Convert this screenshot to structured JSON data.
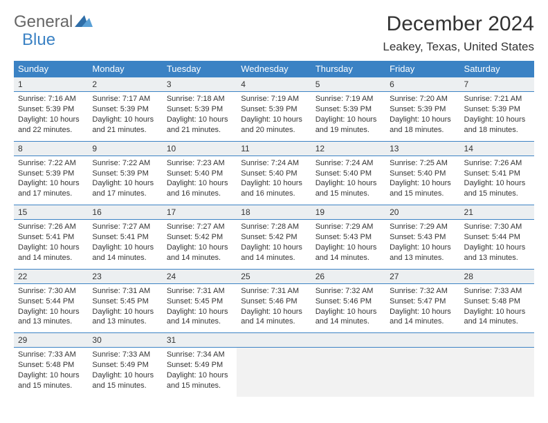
{
  "logo": {
    "text1": "General",
    "text2": "Blue"
  },
  "title": "December 2024",
  "location": "Leakey, Texas, United States",
  "colors": {
    "header_bg": "#3b82c4",
    "header_text": "#ffffff",
    "daynum_bg": "#eceff1",
    "border": "#3b82c4",
    "empty_bg": "#f2f2f2",
    "text": "#333333"
  },
  "day_names": [
    "Sunday",
    "Monday",
    "Tuesday",
    "Wednesday",
    "Thursday",
    "Friday",
    "Saturday"
  ],
  "weeks": [
    [
      {
        "n": "1",
        "sr": "Sunrise: 7:16 AM",
        "ss": "Sunset: 5:39 PM",
        "dl": "Daylight: 10 hours and 22 minutes."
      },
      {
        "n": "2",
        "sr": "Sunrise: 7:17 AM",
        "ss": "Sunset: 5:39 PM",
        "dl": "Daylight: 10 hours and 21 minutes."
      },
      {
        "n": "3",
        "sr": "Sunrise: 7:18 AM",
        "ss": "Sunset: 5:39 PM",
        "dl": "Daylight: 10 hours and 21 minutes."
      },
      {
        "n": "4",
        "sr": "Sunrise: 7:19 AM",
        "ss": "Sunset: 5:39 PM",
        "dl": "Daylight: 10 hours and 20 minutes."
      },
      {
        "n": "5",
        "sr": "Sunrise: 7:19 AM",
        "ss": "Sunset: 5:39 PM",
        "dl": "Daylight: 10 hours and 19 minutes."
      },
      {
        "n": "6",
        "sr": "Sunrise: 7:20 AM",
        "ss": "Sunset: 5:39 PM",
        "dl": "Daylight: 10 hours and 18 minutes."
      },
      {
        "n": "7",
        "sr": "Sunrise: 7:21 AM",
        "ss": "Sunset: 5:39 PM",
        "dl": "Daylight: 10 hours and 18 minutes."
      }
    ],
    [
      {
        "n": "8",
        "sr": "Sunrise: 7:22 AM",
        "ss": "Sunset: 5:39 PM",
        "dl": "Daylight: 10 hours and 17 minutes."
      },
      {
        "n": "9",
        "sr": "Sunrise: 7:22 AM",
        "ss": "Sunset: 5:39 PM",
        "dl": "Daylight: 10 hours and 17 minutes."
      },
      {
        "n": "10",
        "sr": "Sunrise: 7:23 AM",
        "ss": "Sunset: 5:40 PM",
        "dl": "Daylight: 10 hours and 16 minutes."
      },
      {
        "n": "11",
        "sr": "Sunrise: 7:24 AM",
        "ss": "Sunset: 5:40 PM",
        "dl": "Daylight: 10 hours and 16 minutes."
      },
      {
        "n": "12",
        "sr": "Sunrise: 7:24 AM",
        "ss": "Sunset: 5:40 PM",
        "dl": "Daylight: 10 hours and 15 minutes."
      },
      {
        "n": "13",
        "sr": "Sunrise: 7:25 AM",
        "ss": "Sunset: 5:40 PM",
        "dl": "Daylight: 10 hours and 15 minutes."
      },
      {
        "n": "14",
        "sr": "Sunrise: 7:26 AM",
        "ss": "Sunset: 5:41 PM",
        "dl": "Daylight: 10 hours and 15 minutes."
      }
    ],
    [
      {
        "n": "15",
        "sr": "Sunrise: 7:26 AM",
        "ss": "Sunset: 5:41 PM",
        "dl": "Daylight: 10 hours and 14 minutes."
      },
      {
        "n": "16",
        "sr": "Sunrise: 7:27 AM",
        "ss": "Sunset: 5:41 PM",
        "dl": "Daylight: 10 hours and 14 minutes."
      },
      {
        "n": "17",
        "sr": "Sunrise: 7:27 AM",
        "ss": "Sunset: 5:42 PM",
        "dl": "Daylight: 10 hours and 14 minutes."
      },
      {
        "n": "18",
        "sr": "Sunrise: 7:28 AM",
        "ss": "Sunset: 5:42 PM",
        "dl": "Daylight: 10 hours and 14 minutes."
      },
      {
        "n": "19",
        "sr": "Sunrise: 7:29 AM",
        "ss": "Sunset: 5:43 PM",
        "dl": "Daylight: 10 hours and 14 minutes."
      },
      {
        "n": "20",
        "sr": "Sunrise: 7:29 AM",
        "ss": "Sunset: 5:43 PM",
        "dl": "Daylight: 10 hours and 13 minutes."
      },
      {
        "n": "21",
        "sr": "Sunrise: 7:30 AM",
        "ss": "Sunset: 5:44 PM",
        "dl": "Daylight: 10 hours and 13 minutes."
      }
    ],
    [
      {
        "n": "22",
        "sr": "Sunrise: 7:30 AM",
        "ss": "Sunset: 5:44 PM",
        "dl": "Daylight: 10 hours and 13 minutes."
      },
      {
        "n": "23",
        "sr": "Sunrise: 7:31 AM",
        "ss": "Sunset: 5:45 PM",
        "dl": "Daylight: 10 hours and 13 minutes."
      },
      {
        "n": "24",
        "sr": "Sunrise: 7:31 AM",
        "ss": "Sunset: 5:45 PM",
        "dl": "Daylight: 10 hours and 14 minutes."
      },
      {
        "n": "25",
        "sr": "Sunrise: 7:31 AM",
        "ss": "Sunset: 5:46 PM",
        "dl": "Daylight: 10 hours and 14 minutes."
      },
      {
        "n": "26",
        "sr": "Sunrise: 7:32 AM",
        "ss": "Sunset: 5:46 PM",
        "dl": "Daylight: 10 hours and 14 minutes."
      },
      {
        "n": "27",
        "sr": "Sunrise: 7:32 AM",
        "ss": "Sunset: 5:47 PM",
        "dl": "Daylight: 10 hours and 14 minutes."
      },
      {
        "n": "28",
        "sr": "Sunrise: 7:33 AM",
        "ss": "Sunset: 5:48 PM",
        "dl": "Daylight: 10 hours and 14 minutes."
      }
    ],
    [
      {
        "n": "29",
        "sr": "Sunrise: 7:33 AM",
        "ss": "Sunset: 5:48 PM",
        "dl": "Daylight: 10 hours and 15 minutes."
      },
      {
        "n": "30",
        "sr": "Sunrise: 7:33 AM",
        "ss": "Sunset: 5:49 PM",
        "dl": "Daylight: 10 hours and 15 minutes."
      },
      {
        "n": "31",
        "sr": "Sunrise: 7:34 AM",
        "ss": "Sunset: 5:49 PM",
        "dl": "Daylight: 10 hours and 15 minutes."
      },
      null,
      null,
      null,
      null
    ]
  ]
}
